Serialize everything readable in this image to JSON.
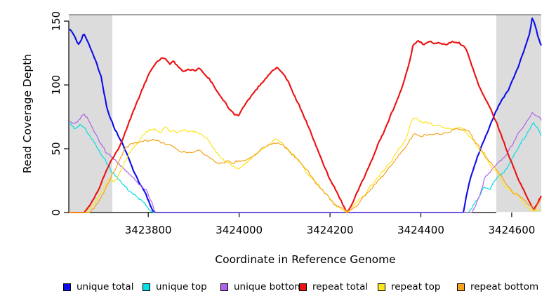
{
  "chart_data": {
    "type": "line",
    "title": "",
    "xlabel": "Coordinate in Reference Genome",
    "ylabel": "Read Coverage Depth",
    "xlim": [
      3423625,
      3424665
    ],
    "ylim": [
      0,
      155
    ],
    "x_ticks": [
      3423800,
      3424000,
      3424200,
      3424400,
      3424600
    ],
    "y_ticks": [
      0,
      50,
      100,
      150
    ],
    "grid": false,
    "legend_position": "bottom",
    "axis_color": "#000000",
    "top_border_color": "#858585",
    "shaded_regions": [
      {
        "x0": 3423625,
        "x1": 3423721,
        "color": "#DCDCDC"
      },
      {
        "x0": 3424566,
        "x1": 3424665,
        "color": "#DCDCDC"
      }
    ],
    "series": [
      {
        "name": "unique total",
        "color": "#0D0DEA",
        "line_width": 2.1,
        "points": [
          [
            3423625,
            145
          ],
          [
            3423633,
            142
          ],
          [
            3423645,
            132
          ],
          [
            3423651,
            133
          ],
          [
            3423658,
            140
          ],
          [
            3423670,
            131
          ],
          [
            3423682,
            120
          ],
          [
            3423696,
            106
          ],
          [
            3423710,
            80
          ],
          [
            3423727,
            65
          ],
          [
            3423744,
            54
          ],
          [
            3423768,
            33
          ],
          [
            3423788,
            19
          ],
          [
            3423803,
            7
          ],
          [
            3423812,
            0
          ],
          [
            3424494,
            0
          ],
          [
            3424500,
            12
          ],
          [
            3424510,
            28
          ],
          [
            3424521,
            40
          ],
          [
            3424533,
            52
          ],
          [
            3424547,
            63
          ],
          [
            3424562,
            76
          ],
          [
            3424578,
            88
          ],
          [
            3424592,
            95
          ],
          [
            3424606,
            107
          ],
          [
            3424620,
            120
          ],
          [
            3424634,
            133
          ],
          [
            3424640,
            140
          ],
          [
            3424645,
            151
          ],
          [
            3424651,
            147
          ],
          [
            3424657,
            139
          ],
          [
            3424665,
            131
          ]
        ]
      },
      {
        "name": "unique top",
        "color": "#00DEE6",
        "line_width": 1.2,
        "points": [
          [
            3423625,
            70
          ],
          [
            3423638,
            66
          ],
          [
            3423650,
            69
          ],
          [
            3423663,
            64
          ],
          [
            3423676,
            57
          ],
          [
            3423690,
            49
          ],
          [
            3423706,
            40
          ],
          [
            3423720,
            30
          ],
          [
            3423737,
            24
          ],
          [
            3423758,
            16
          ],
          [
            3423775,
            11
          ],
          [
            3423791,
            7
          ],
          [
            3423801,
            3
          ],
          [
            3423812,
            0
          ],
          [
            3424505,
            0
          ],
          [
            3424516,
            6
          ],
          [
            3424528,
            12
          ],
          [
            3424540,
            19
          ],
          [
            3424551,
            18
          ],
          [
            3424565,
            25
          ],
          [
            3424579,
            31
          ],
          [
            3424591,
            36
          ],
          [
            3424605,
            44
          ],
          [
            3424622,
            55
          ],
          [
            3424634,
            61
          ],
          [
            3424648,
            69
          ],
          [
            3424656,
            66
          ],
          [
            3424665,
            61
          ]
        ]
      },
      {
        "name": "unique bottom",
        "color": "#AE63E8",
        "line_width": 1.2,
        "points": [
          [
            3423625,
            73
          ],
          [
            3423638,
            70
          ],
          [
            3423650,
            73
          ],
          [
            3423657,
            77
          ],
          [
            3423668,
            72
          ],
          [
            3423680,
            64
          ],
          [
            3423693,
            55
          ],
          [
            3423706,
            47
          ],
          [
            3423729,
            40
          ],
          [
            3423752,
            31
          ],
          [
            3423775,
            25
          ],
          [
            3423798,
            15
          ],
          [
            3423807,
            8
          ],
          [
            3423815,
            0
          ],
          [
            3424513,
            0
          ],
          [
            3424522,
            8
          ],
          [
            3424532,
            17
          ],
          [
            3424540,
            27
          ],
          [
            3424555,
            32
          ],
          [
            3424571,
            39
          ],
          [
            3424591,
            47
          ],
          [
            3424605,
            55
          ],
          [
            3424617,
            64
          ],
          [
            3424631,
            70
          ],
          [
            3424645,
            80
          ],
          [
            3424655,
            76
          ],
          [
            3424665,
            72
          ]
        ]
      },
      {
        "name": "repeat total",
        "color": "#ED1111",
        "line_width": 2.1,
        "points": [
          [
            3423625,
            0
          ],
          [
            3423659,
            0
          ],
          [
            3423668,
            4
          ],
          [
            3423680,
            11
          ],
          [
            3423694,
            22
          ],
          [
            3423710,
            35
          ],
          [
            3423725,
            44
          ],
          [
            3423740,
            55
          ],
          [
            3423756,
            69
          ],
          [
            3423771,
            83
          ],
          [
            3423786,
            96
          ],
          [
            3423800,
            108
          ],
          [
            3423814,
            115
          ],
          [
            3423828,
            120
          ],
          [
            3423837,
            122
          ],
          [
            3423847,
            117
          ],
          [
            3423854,
            119
          ],
          [
            3423863,
            115
          ],
          [
            3423876,
            110
          ],
          [
            3423889,
            113
          ],
          [
            3423903,
            111
          ],
          [
            3423914,
            113
          ],
          [
            3423923,
            108
          ],
          [
            3423936,
            103
          ],
          [
            3423950,
            95
          ],
          [
            3423964,
            88
          ],
          [
            3423977,
            81
          ],
          [
            3423988,
            77
          ],
          [
            3423998,
            76
          ],
          [
            3424008,
            81
          ],
          [
            3424022,
            88
          ],
          [
            3424040,
            97
          ],
          [
            3424058,
            105
          ],
          [
            3424074,
            112
          ],
          [
            3424085,
            114
          ],
          [
            3424096,
            109
          ],
          [
            3424112,
            99
          ],
          [
            3424130,
            85
          ],
          [
            3424150,
            69
          ],
          [
            3424170,
            52
          ],
          [
            3424191,
            34
          ],
          [
            3424212,
            17
          ],
          [
            3424227,
            7
          ],
          [
            3424237,
            0
          ],
          [
            3424250,
            8
          ],
          [
            3424266,
            21
          ],
          [
            3424285,
            36
          ],
          [
            3424305,
            52
          ],
          [
            3424325,
            68
          ],
          [
            3424344,
            84
          ],
          [
            3424360,
            100
          ],
          [
            3424374,
            117
          ],
          [
            3424383,
            132
          ],
          [
            3424394,
            134
          ],
          [
            3424406,
            131
          ],
          [
            3424418,
            134
          ],
          [
            3424430,
            132
          ],
          [
            3424443,
            133
          ],
          [
            3424456,
            131
          ],
          [
            3424469,
            134
          ],
          [
            3424482,
            133
          ],
          [
            3424494,
            130
          ],
          [
            3424501,
            126
          ],
          [
            3424515,
            112
          ],
          [
            3424529,
            99
          ],
          [
            3424540,
            91
          ],
          [
            3424554,
            80
          ],
          [
            3424568,
            69
          ],
          [
            3424584,
            53
          ],
          [
            3424600,
            38
          ],
          [
            3424617,
            24
          ],
          [
            3424633,
            12
          ],
          [
            3424648,
            3
          ],
          [
            3424656,
            7
          ],
          [
            3424665,
            14
          ]
        ]
      },
      {
        "name": "repeat top",
        "color": "#FCE51C",
        "line_width": 1.2,
        "points": [
          [
            3423625,
            0
          ],
          [
            3423662,
            0
          ],
          [
            3423673,
            4
          ],
          [
            3423686,
            10
          ],
          [
            3423700,
            18
          ],
          [
            3423713,
            25
          ],
          [
            3423724,
            23
          ],
          [
            3423739,
            33
          ],
          [
            3423755,
            43
          ],
          [
            3423770,
            52
          ],
          [
            3423784,
            58
          ],
          [
            3423799,
            63
          ],
          [
            3423813,
            65
          ],
          [
            3423827,
            63
          ],
          [
            3423836,
            67
          ],
          [
            3423846,
            63
          ],
          [
            3423861,
            62
          ],
          [
            3423876,
            64
          ],
          [
            3423890,
            62
          ],
          [
            3423904,
            64
          ],
          [
            3423916,
            62
          ],
          [
            3423930,
            58
          ],
          [
            3423944,
            51
          ],
          [
            3423959,
            44
          ],
          [
            3423974,
            40
          ],
          [
            3423988,
            37
          ],
          [
            3424000,
            36
          ],
          [
            3424012,
            39
          ],
          [
            3424026,
            43
          ],
          [
            3424046,
            48
          ],
          [
            3424066,
            53
          ],
          [
            3424080,
            57
          ],
          [
            3424092,
            55
          ],
          [
            3424106,
            50
          ],
          [
            3424126,
            42
          ],
          [
            3424146,
            33
          ],
          [
            3424166,
            25
          ],
          [
            3424187,
            16
          ],
          [
            3424207,
            8
          ],
          [
            3424226,
            2
          ],
          [
            3424237,
            0
          ],
          [
            3424256,
            7
          ],
          [
            3424276,
            14
          ],
          [
            3424296,
            22
          ],
          [
            3424316,
            31
          ],
          [
            3424336,
            41
          ],
          [
            3424355,
            51
          ],
          [
            3424369,
            60
          ],
          [
            3424381,
            72
          ],
          [
            3424391,
            73
          ],
          [
            3424403,
            71
          ],
          [
            3424416,
            70
          ],
          [
            3424429,
            69
          ],
          [
            3424443,
            68
          ],
          [
            3424457,
            67
          ],
          [
            3424471,
            66
          ],
          [
            3424486,
            66
          ],
          [
            3424500,
            63
          ],
          [
            3424515,
            56
          ],
          [
            3424529,
            47
          ],
          [
            3424541,
            46
          ],
          [
            3424556,
            36
          ],
          [
            3424570,
            30
          ],
          [
            3424586,
            21
          ],
          [
            3424601,
            15
          ],
          [
            3424618,
            11
          ],
          [
            3424634,
            5
          ],
          [
            3424650,
            1
          ],
          [
            3424665,
            3
          ]
        ]
      },
      {
        "name": "repeat bottom",
        "color": "#F5A31E",
        "line_width": 1.2,
        "points": [
          [
            3423625,
            0
          ],
          [
            3423671,
            0
          ],
          [
            3423682,
            5
          ],
          [
            3423696,
            13
          ],
          [
            3423710,
            23
          ],
          [
            3423722,
            32
          ],
          [
            3423736,
            41
          ],
          [
            3423749,
            49
          ],
          [
            3423763,
            54
          ],
          [
            3423777,
            56
          ],
          [
            3423790,
            57
          ],
          [
            3423803,
            57
          ],
          [
            3423814,
            58
          ],
          [
            3423827,
            55
          ],
          [
            3423841,
            53
          ],
          [
            3423856,
            50
          ],
          [
            3423871,
            48
          ],
          [
            3423886,
            49
          ],
          [
            3423900,
            47
          ],
          [
            3423912,
            50
          ],
          [
            3423922,
            47
          ],
          [
            3423934,
            44
          ],
          [
            3423947,
            40
          ],
          [
            3423960,
            39
          ],
          [
            3423972,
            41
          ],
          [
            3423986,
            38
          ],
          [
            3423999,
            39
          ],
          [
            3424013,
            42
          ],
          [
            3424032,
            45
          ],
          [
            3424052,
            50
          ],
          [
            3424070,
            54
          ],
          [
            3424082,
            55
          ],
          [
            3424094,
            53
          ],
          [
            3424108,
            48
          ],
          [
            3424128,
            41
          ],
          [
            3424148,
            33
          ],
          [
            3424168,
            25
          ],
          [
            3424188,
            16
          ],
          [
            3424208,
            8
          ],
          [
            3424230,
            2
          ],
          [
            3424240,
            0
          ],
          [
            3424259,
            6
          ],
          [
            3424279,
            13
          ],
          [
            3424299,
            21
          ],
          [
            3424319,
            29
          ],
          [
            3424339,
            38
          ],
          [
            3424359,
            47
          ],
          [
            3424373,
            54
          ],
          [
            3424385,
            60
          ],
          [
            3424399,
            59
          ],
          [
            3424413,
            61
          ],
          [
            3424429,
            60
          ],
          [
            3424444,
            62
          ],
          [
            3424458,
            63
          ],
          [
            3424470,
            65
          ],
          [
            3424482,
            66
          ],
          [
            3424494,
            65
          ],
          [
            3424507,
            62
          ],
          [
            3424521,
            55
          ],
          [
            3424533,
            50
          ],
          [
            3424541,
            44
          ],
          [
            3424557,
            36
          ],
          [
            3424572,
            30
          ],
          [
            3424587,
            22
          ],
          [
            3424602,
            16
          ],
          [
            3424618,
            14
          ],
          [
            3424634,
            7
          ],
          [
            3424650,
            1
          ],
          [
            3424658,
            6
          ],
          [
            3424665,
            11
          ]
        ]
      }
    ]
  }
}
